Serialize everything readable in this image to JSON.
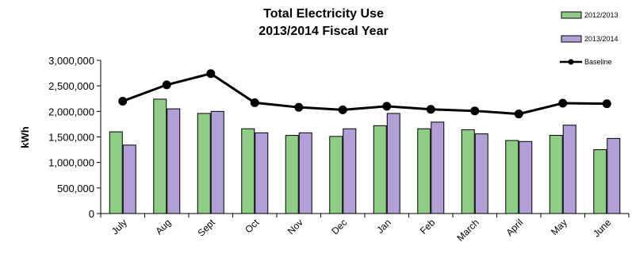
{
  "chart_data": {
    "type": "bar",
    "title": [
      "Total Electricity Use",
      "2013/2014 Fiscal Year"
    ],
    "ylabel": "kWh",
    "xlabel": "",
    "categories": [
      "July",
      "Aug",
      "Sept",
      "Oct",
      "Nov",
      "Dec",
      "Jan",
      "Feb",
      "March",
      "April",
      "May",
      "June"
    ],
    "series": [
      {
        "name": "2012/2013",
        "kind": "bar",
        "color": "#8fcd87",
        "values": [
          1600000,
          2240000,
          1960000,
          1660000,
          1530000,
          1510000,
          1720000,
          1660000,
          1640000,
          1430000,
          1530000,
          1250000
        ]
      },
      {
        "name": "2013/2014",
        "kind": "bar",
        "color": "#b19fd6",
        "values": [
          1340000,
          2050000,
          2000000,
          1580000,
          1580000,
          1660000,
          1960000,
          1790000,
          1560000,
          1410000,
          1730000,
          1470000
        ]
      },
      {
        "name": "Baseline",
        "kind": "line",
        "color": "#000000",
        "values": [
          2200000,
          2520000,
          2740000,
          2170000,
          2080000,
          2030000,
          2100000,
          2040000,
          2010000,
          1950000,
          2160000,
          2150000
        ]
      }
    ],
    "ylim": [
      0,
      3000000
    ],
    "yticks": [
      0,
      500000,
      1000000,
      1500000,
      2000000,
      2500000,
      3000000
    ],
    "ytick_labels": [
      "0",
      "500,000",
      "1,000,000",
      "1,500,000",
      "2,000,000",
      "2,500,000",
      "3,000,000"
    ],
    "grid": false,
    "legend": "top-right"
  }
}
